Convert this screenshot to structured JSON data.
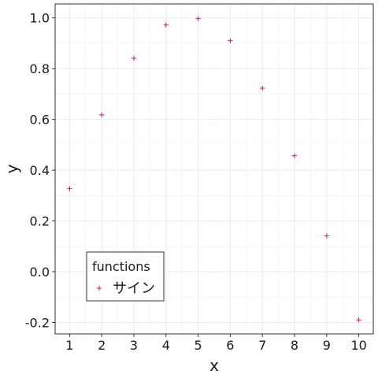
{
  "chart_data": {
    "type": "scatter",
    "xlabel": "x",
    "ylabel": "y",
    "xlim": [
      0.55,
      10.45
    ],
    "ylim": [
      -0.245,
      1.055
    ],
    "x_ticks": [
      1,
      2,
      3,
      4,
      5,
      6,
      7,
      8,
      9,
      10
    ],
    "x_tick_labels": [
      "1",
      "2",
      "3",
      "4",
      "5",
      "6",
      "7",
      "8",
      "9",
      "10"
    ],
    "y_ticks": [
      -0.2,
      0.0,
      0.2,
      0.4,
      0.6,
      0.8,
      1.0
    ],
    "y_tick_labels": [
      "-0.2",
      "0.0",
      "0.2",
      "0.4",
      "0.6",
      "0.8",
      "1.0"
    ],
    "grid": true,
    "legend": {
      "title": "functions",
      "position": "bottom-left"
    },
    "series": [
      {
        "name": "サイン",
        "marker": "plus",
        "color": "#c71585",
        "x": [
          1,
          2,
          3,
          4,
          5,
          6,
          7,
          8,
          9,
          10
        ],
        "y": [
          0.327,
          0.618,
          0.841,
          0.972,
          0.997,
          0.91,
          0.723,
          0.457,
          0.141,
          -0.19
        ]
      }
    ]
  }
}
